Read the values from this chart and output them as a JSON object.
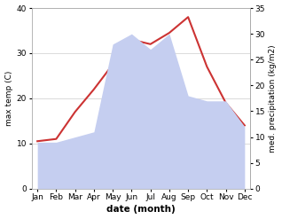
{
  "months": [
    "Jan",
    "Feb",
    "Mar",
    "Apr",
    "May",
    "Jun",
    "Jul",
    "Aug",
    "Sep",
    "Oct",
    "Nov",
    "Dec"
  ],
  "temperature": [
    10.5,
    11.0,
    17.0,
    22.0,
    27.5,
    33.0,
    32.0,
    34.5,
    38.0,
    27.0,
    19.0,
    14.0
  ],
  "precipitation": [
    9,
    9,
    10,
    11,
    28,
    30,
    27,
    30,
    18,
    17,
    17,
    12
  ],
  "temp_color": "#cc3333",
  "precip_fill_color": "#c5cef0",
  "bg_color": "#ffffff",
  "xlabel": "date (month)",
  "ylabel_left": "max temp (C)",
  "ylabel_right": "med. precipitation (kg/m2)",
  "temp_ylim": [
    0,
    40
  ],
  "precip_ylim": [
    0,
    35
  ],
  "temp_yticks": [
    0,
    10,
    20,
    30,
    40
  ],
  "precip_yticks": [
    0,
    5,
    10,
    15,
    20,
    25,
    30,
    35
  ],
  "figsize": [
    3.18,
    2.47
  ],
  "dpi": 100
}
